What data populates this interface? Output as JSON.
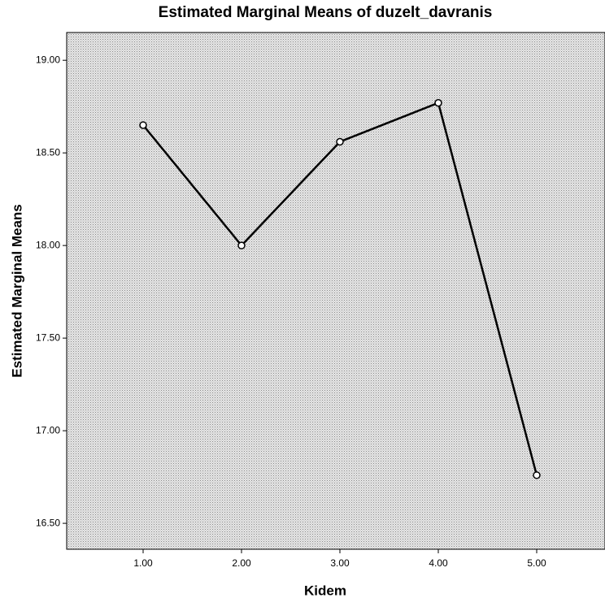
{
  "chart_data": {
    "type": "line",
    "title": "Estimated Marginal Means of duzelt_davranis",
    "x_label": "Kidem",
    "y_label": "Estimated Marginal Means",
    "categories": [
      "1.00",
      "2.00",
      "3.00",
      "4.00",
      "5.00"
    ],
    "values": [
      18.65,
      18.0,
      18.56,
      18.77,
      16.76
    ],
    "color": "#000000",
    "ylim": [
      16.36,
      19.15
    ],
    "yticks": [
      {
        "value": 16.5,
        "label": "16.50"
      },
      {
        "value": 17.0,
        "label": "17.00"
      },
      {
        "value": 17.5,
        "label": "17.50"
      },
      {
        "value": 18.0,
        "label": "18.00"
      },
      {
        "value": 18.5,
        "label": "18.50"
      },
      {
        "value": 19.0,
        "label": "19.00"
      }
    ]
  }
}
